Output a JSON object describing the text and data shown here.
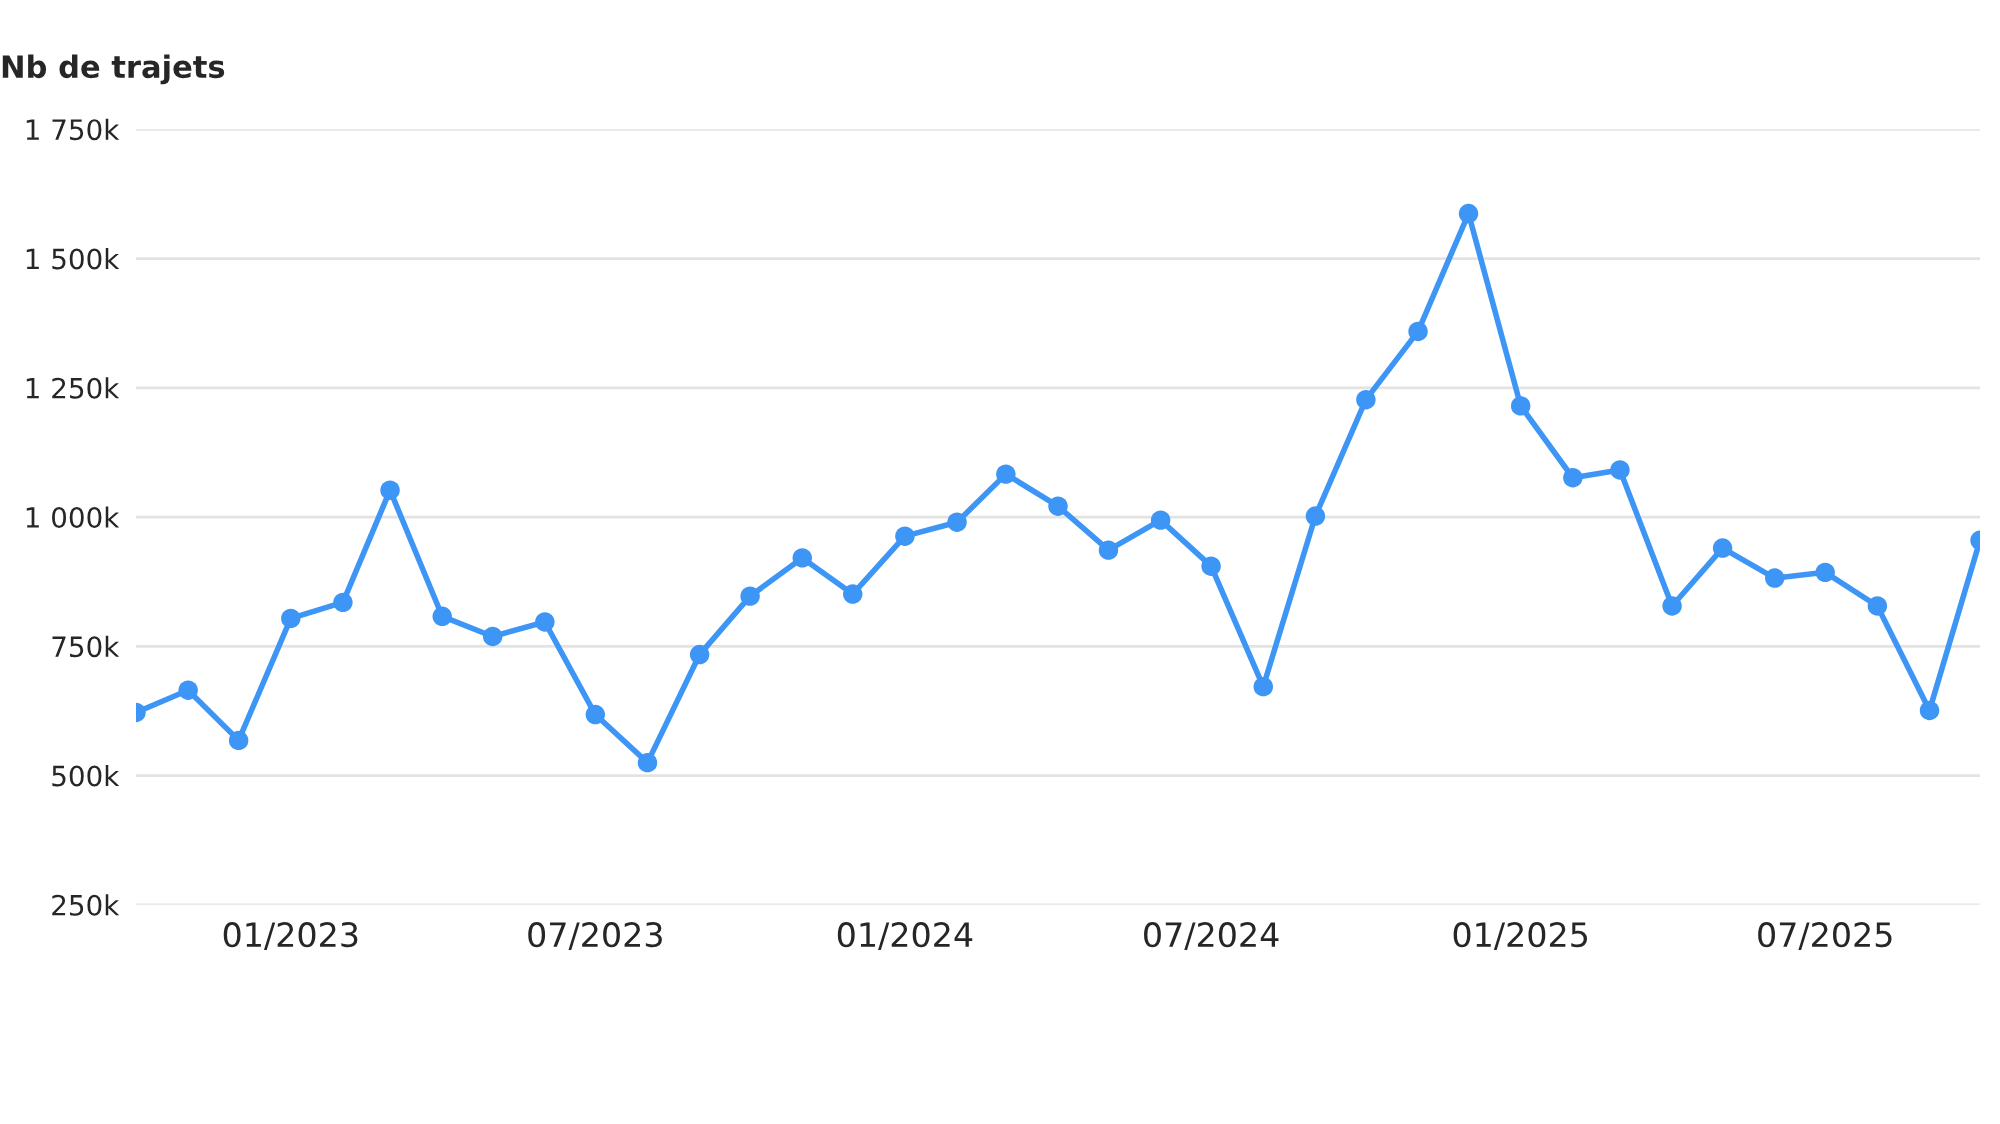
{
  "chart_data": {
    "type": "line",
    "ylabel": "Nb de trajets",
    "x": [
      "2022-10",
      "2022-11",
      "2022-12",
      "2023-01",
      "2023-02",
      "2023-03",
      "2023-04",
      "2023-05",
      "2023-06",
      "2023-07",
      "2023-08",
      "2023-09",
      "2023-10",
      "2023-11",
      "2023-12",
      "2024-01",
      "2024-02",
      "2024-03",
      "2024-04",
      "2024-05",
      "2024-06",
      "2024-07",
      "2024-08",
      "2024-09",
      "2024-10",
      "2024-11",
      "2024-12",
      "2025-01",
      "2025-02",
      "2025-03",
      "2025-04",
      "2025-05",
      "2025-06",
      "2025-07",
      "2025-08",
      "2025-09",
      "2025-10"
    ],
    "series": [
      {
        "color": "#3d95f5",
        "values": [
          622,
          665,
          568,
          804,
          835,
          1052,
          808,
          769,
          797,
          618,
          525,
          734,
          847,
          921,
          851,
          963,
          990,
          1083,
          1021,
          936,
          994,
          905,
          672,
          1002,
          1227,
          1359,
          1587,
          1215,
          1076,
          1091,
          828,
          940,
          882,
          893,
          828,
          626,
          955
        ]
      }
    ],
    "xlim": [
      "2022-10",
      "2025-10"
    ],
    "xticks": [
      {
        "value": "2023-01",
        "label": "01/2023"
      },
      {
        "value": "2023-07",
        "label": "07/2023"
      },
      {
        "value": "2024-01",
        "label": "01/2024"
      },
      {
        "value": "2024-07",
        "label": "07/2024"
      },
      {
        "value": "2025-01",
        "label": "01/2025"
      },
      {
        "value": "2025-07",
        "label": "07/2025"
      }
    ],
    "ylim": [
      250,
      1750
    ],
    "yticks": [
      {
        "value": 250,
        "label": "250k"
      },
      {
        "value": 500,
        "label": "500k"
      },
      {
        "value": 750,
        "label": "750k"
      },
      {
        "value": 1000,
        "label": "1 000k"
      },
      {
        "value": 1250,
        "label": "1 250k"
      },
      {
        "value": 1500,
        "label": "1 500k"
      },
      {
        "value": 1750,
        "label": "1 750k"
      }
    ],
    "grid": "y",
    "marker": "circle",
    "line_style": "solid"
  }
}
